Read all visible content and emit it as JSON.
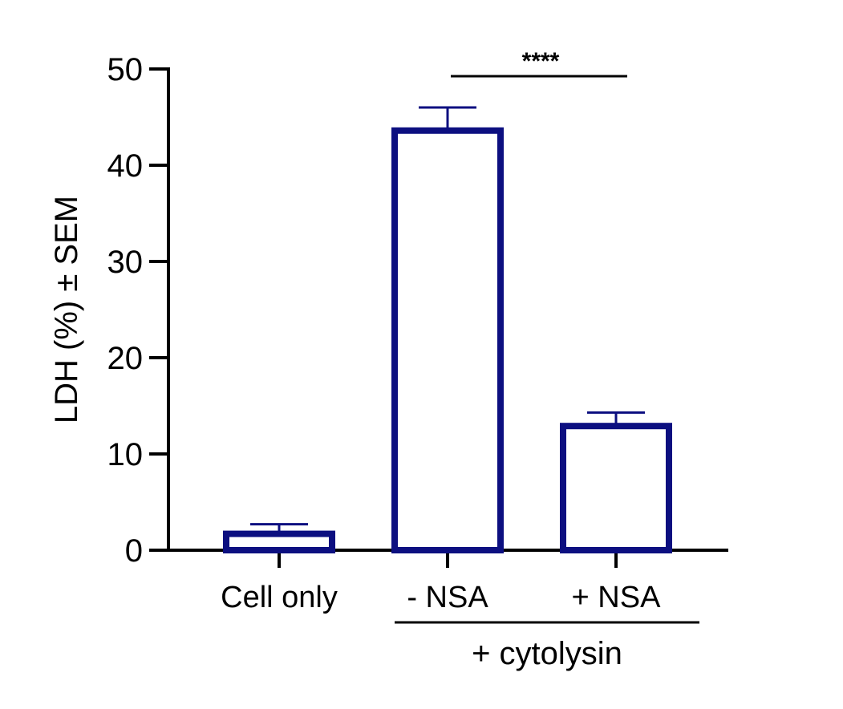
{
  "chart_data": {
    "type": "bar",
    "categories": [
      "Cell only",
      "- NSA",
      "+ NSA"
    ],
    "values": [
      1.7,
      43.6,
      12.9
    ],
    "errors": [
      1.0,
      2.4,
      1.4
    ],
    "ylabel": "LDH (%) ± SEM",
    "ylim": [
      0,
      50
    ],
    "yticks": [
      0,
      10,
      20,
      30,
      40,
      50
    ],
    "group_label": "+ cytolysin",
    "group_categories": [
      "- NSA",
      "+ NSA"
    ],
    "significance": {
      "between": [
        "- NSA",
        "+ NSA"
      ],
      "label": "****"
    },
    "colors": {
      "bar_stroke": "#0c0f80",
      "bar_fill": "#ffffff",
      "axis": "#000000"
    },
    "grid": false
  }
}
